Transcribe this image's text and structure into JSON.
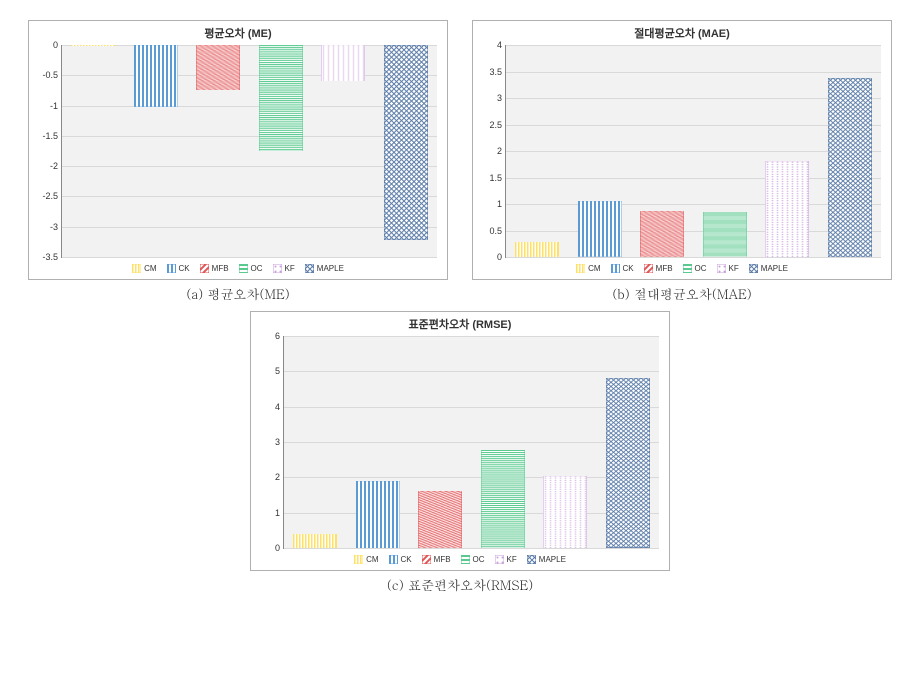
{
  "legend_series": [
    {
      "key": "CM",
      "label": "CM",
      "color": "#ffe066",
      "pattern": "dotv"
    },
    {
      "key": "CK",
      "label": "CK",
      "color": "#5b9bd5",
      "pattern": "vstripe"
    },
    {
      "key": "MFB",
      "label": "MFB",
      "color": "#e15759",
      "pattern": "diag"
    },
    {
      "key": "OC",
      "label": "OC",
      "color": "#59c98f",
      "pattern": "hstripe"
    },
    {
      "key": "KF",
      "label": "KF",
      "color": "#c9a0dc",
      "pattern": "dots"
    },
    {
      "key": "MAPLE",
      "label": "MAPLE",
      "color": "#5b7ca8",
      "pattern": "cross"
    }
  ],
  "charts": {
    "a": {
      "title": "평균오차 (ME)",
      "caption": "(a)  평균오차(ME)",
      "ylim": [
        -3.5,
        0
      ],
      "ytick_step": 0.5,
      "background": "#f2f2f2",
      "grid_color": "#d9d9d9",
      "values": {
        "CM": -0.02,
        "CK": -1.02,
        "MFB": -0.75,
        "OC": -1.75,
        "KF": -0.6,
        "MAPLE": -3.22
      }
    },
    "b": {
      "title": "절대평균오차 (MAE)",
      "caption": "(b)  절대평균오차(MAE)",
      "ylim": [
        0,
        4
      ],
      "ytick_step": 0.5,
      "background": "#f2f2f2",
      "grid_color": "#d9d9d9",
      "values": {
        "CM": 0.28,
        "CK": 1.05,
        "MFB": 0.86,
        "OC": 0.84,
        "KF": 1.82,
        "MAPLE": 3.38
      }
    },
    "c": {
      "title": "표준편차오차 (RMSE)",
      "caption": "(c)  표준편차오차(RMSE)",
      "ylim": [
        0,
        6
      ],
      "ytick_step": 1,
      "background": "#f2f2f2",
      "grid_color": "#d9d9d9",
      "values": {
        "CM": 0.4,
        "CK": 1.9,
        "MFB": 1.62,
        "OC": 2.78,
        "KF": 2.05,
        "MAPLE": 4.8
      }
    }
  }
}
